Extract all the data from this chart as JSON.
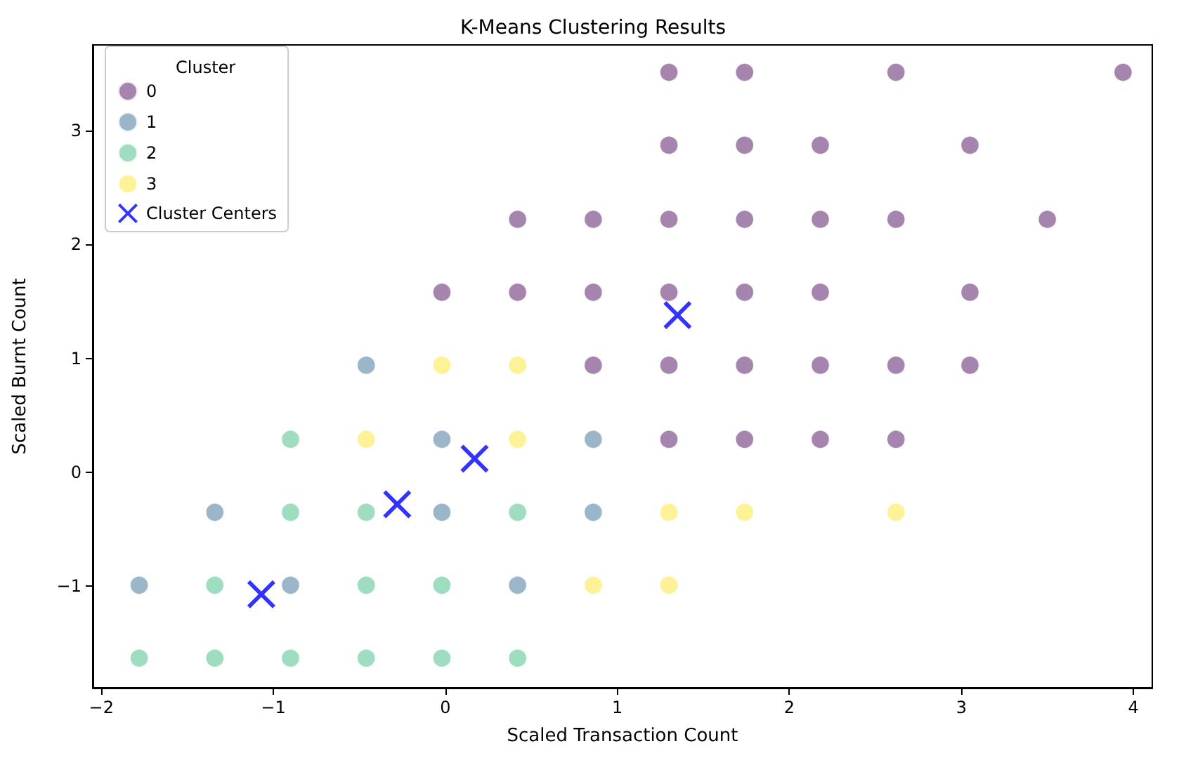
{
  "chart_data": {
    "type": "scatter",
    "title": "K-Means Clustering Results",
    "xlabel": "Scaled Transaction Count",
    "ylabel": "Scaled Burnt Count",
    "legend_title": "Cluster",
    "legend": "top left",
    "grid": false,
    "marker": "circle",
    "xlim": [
      -2.05,
      4.11
    ],
    "ylim": [
      -1.89,
      3.75
    ],
    "xticks": [
      {
        "value": -2,
        "label": "−2"
      },
      {
        "value": -1,
        "label": "−1"
      },
      0,
      1,
      2,
      3,
      4
    ],
    "yticks": [
      {
        "value": -1,
        "label": "−1"
      },
      0,
      1,
      2,
      3
    ],
    "series": [
      {
        "name": "0",
        "color": "#8f6798",
        "x": [
          1.3,
          1.74,
          2.62,
          3.94,
          1.3,
          1.74,
          2.18,
          3.05,
          0.42,
          0.86,
          1.3,
          1.74,
          2.18,
          2.62,
          3.5,
          -0.02,
          0.42,
          0.86,
          1.3,
          1.74,
          2.18,
          3.05,
          0.86,
          1.3,
          1.74,
          2.18,
          2.62,
          3.05,
          1.3,
          1.74,
          2.18,
          2.62
        ],
        "values": [
          3.51,
          3.51,
          3.51,
          3.51,
          2.87,
          2.87,
          2.87,
          2.87,
          2.22,
          2.22,
          2.22,
          2.22,
          2.22,
          2.22,
          2.22,
          1.58,
          1.58,
          1.58,
          1.58,
          1.58,
          1.58,
          1.58,
          0.94,
          0.94,
          0.94,
          0.94,
          0.94,
          0.94,
          0.29,
          0.29,
          0.29,
          0.29
        ]
      },
      {
        "name": "1",
        "color": "#83a4bb",
        "x": [
          -0.46,
          -0.02,
          0.86,
          -1.34,
          -0.02,
          0.86,
          -1.78,
          -0.9,
          0.42
        ],
        "values": [
          0.94,
          0.29,
          0.29,
          -0.35,
          -0.35,
          -0.35,
          -0.99,
          -0.99,
          -0.99
        ]
      },
      {
        "name": "2",
        "color": "#86d4af",
        "x": [
          -0.9,
          -0.9,
          -0.46,
          0.42,
          -1.34,
          -0.46,
          -0.02,
          -1.78,
          -1.34,
          -0.9,
          -0.46,
          -0.02,
          0.42
        ],
        "values": [
          0.29,
          -0.35,
          -0.35,
          -0.35,
          -0.99,
          -0.99,
          -0.99,
          -1.63,
          -1.63,
          -1.63,
          -1.63,
          -1.63,
          -1.63
        ]
      },
      {
        "name": "3",
        "color": "#feef7c",
        "x": [
          -0.02,
          0.42,
          -0.46,
          0.42,
          1.3,
          1.74,
          2.62,
          0.86,
          1.3
        ],
        "values": [
          0.94,
          0.94,
          0.29,
          0.29,
          -0.35,
          -0.35,
          -0.35,
          -0.99,
          -0.99
        ]
      },
      {
        "name": "Cluster Centers",
        "color": "#0000ff",
        "marker": "cross",
        "x": [
          1.35,
          0.17,
          -0.28,
          -1.07
        ],
        "values": [
          1.38,
          0.12,
          -0.28,
          -1.07
        ]
      }
    ]
  }
}
